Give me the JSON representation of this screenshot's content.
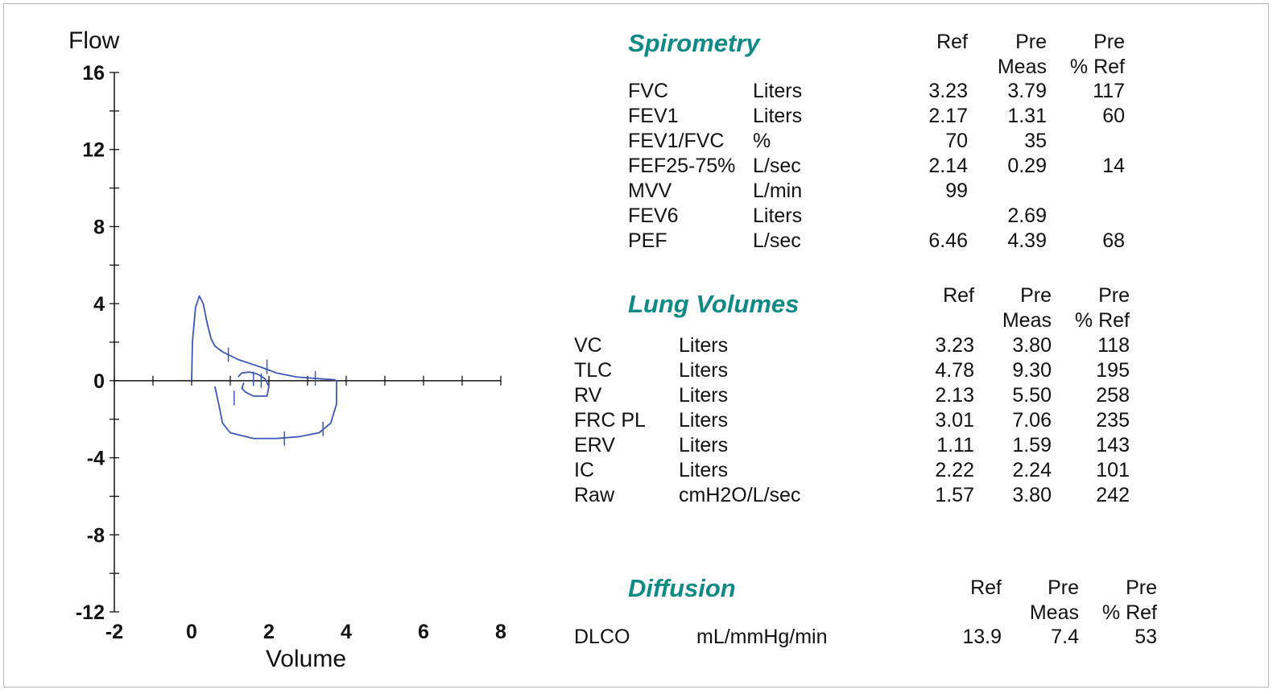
{
  "colors": {
    "accent": "#0e8a86",
    "curve": "#3d57b8",
    "axis": "#111111",
    "frame": "#b9b9b9"
  },
  "chart_data": {
    "type": "line",
    "title": "",
    "xlabel": "Volume",
    "ylabel": "Flow",
    "xlim": [
      -2,
      8
    ],
    "ylim": [
      -12,
      16
    ],
    "xticks_labeled": [
      -2,
      0,
      2,
      4,
      6,
      8
    ],
    "yticks_labeled": [
      16,
      12,
      8,
      4,
      0,
      -4,
      -8,
      -12
    ],
    "xtick_labels": [
      "-2",
      "0",
      "2",
      "4",
      "6",
      "8"
    ],
    "ytick_labels": [
      "16",
      "12",
      "8",
      "4",
      "0",
      "-4",
      "-8",
      "-12"
    ],
    "minor_step": 1,
    "grid": false,
    "series": [
      {
        "values": [
          [
            0.0,
            0.0
          ],
          [
            0.02,
            2.0
          ],
          [
            0.1,
            3.8
          ],
          [
            0.2,
            4.4
          ],
          [
            0.3,
            4.0
          ],
          [
            0.4,
            3.0
          ],
          [
            0.5,
            2.2
          ],
          [
            0.6,
            1.8
          ],
          [
            0.8,
            1.5
          ],
          [
            1.0,
            1.3
          ],
          [
            1.2,
            1.1
          ],
          [
            1.5,
            0.9
          ],
          [
            1.8,
            0.7
          ],
          [
            2.2,
            0.4
          ],
          [
            2.7,
            0.2
          ],
          [
            3.2,
            0.12
          ],
          [
            3.7,
            0.05
          ],
          [
            3.75,
            0.0
          ],
          [
            3.75,
            -1.2
          ],
          [
            3.6,
            -2.2
          ],
          [
            3.3,
            -2.7
          ],
          [
            2.8,
            -2.9
          ],
          [
            2.2,
            -3.0
          ],
          [
            1.6,
            -3.0
          ],
          [
            1.0,
            -2.7
          ],
          [
            0.8,
            -2.2
          ],
          [
            0.7,
            -1.2
          ],
          [
            0.6,
            -0.3
          ]
        ]
      },
      {
        "values": [
          [
            1.2,
            0.2
          ],
          [
            1.3,
            0.4
          ],
          [
            1.5,
            0.45
          ],
          [
            1.7,
            0.35
          ],
          [
            1.9,
            0.1
          ],
          [
            2.0,
            -0.3
          ],
          [
            1.95,
            -0.8
          ],
          [
            1.6,
            -0.8
          ],
          [
            1.4,
            -0.6
          ],
          [
            1.3,
            -0.4
          ],
          [
            1.35,
            -0.1
          ]
        ]
      }
    ]
  },
  "spirometry": {
    "title": "Spirometry",
    "headers": {
      "ref": "Ref",
      "pre1": "Pre",
      "pre1b": "Meas",
      "pre2": "Pre",
      "pre2b": "% Ref"
    },
    "rows": [
      {
        "name": "FVC",
        "unit": "Liters",
        "ref": "3.23",
        "meas": "3.79",
        "pct": "117"
      },
      {
        "name": "FEV1",
        "unit": "Liters",
        "ref": "2.17",
        "meas": "1.31",
        "pct": "60"
      },
      {
        "name": "FEV1/FVC",
        "unit": "%",
        "ref": "70",
        "meas": "35",
        "pct": ""
      },
      {
        "name": "FEF25-75%",
        "unit": "L/sec",
        "ref": "2.14",
        "meas": "0.29",
        "pct": "14"
      },
      {
        "name": "MVV",
        "unit": "L/min",
        "ref": "99",
        "meas": "",
        "pct": ""
      },
      {
        "name": "FEV6",
        "unit": "Liters",
        "ref": "",
        "meas": "2.69",
        "pct": ""
      },
      {
        "name": "PEF",
        "unit": "L/sec",
        "ref": "6.46",
        "meas": "4.39",
        "pct": "68"
      }
    ]
  },
  "lung_volumes": {
    "title": "Lung Volumes",
    "headers": {
      "ref": "Ref",
      "pre1": "Pre",
      "pre1b": "Meas",
      "pre2": "Pre",
      "pre2b": "% Ref"
    },
    "rows": [
      {
        "name": "VC",
        "unit": "Liters",
        "ref": "3.23",
        "meas": "3.80",
        "pct": "118"
      },
      {
        "name": "TLC",
        "unit": "Liters",
        "ref": "4.78",
        "meas": "9.30",
        "pct": "195"
      },
      {
        "name": "RV",
        "unit": "Liters",
        "ref": "2.13",
        "meas": "5.50",
        "pct": "258"
      },
      {
        "name": "FRC PL",
        "unit": "Liters",
        "ref": "3.01",
        "meas": "7.06",
        "pct": "235"
      },
      {
        "name": "ERV",
        "unit": "Liters",
        "ref": "1.11",
        "meas": "1.59",
        "pct": "143"
      },
      {
        "name": "IC",
        "unit": "Liters",
        "ref": "2.22",
        "meas": "2.24",
        "pct": "101"
      },
      {
        "name": "Raw",
        "unit": "cmH2O/L/sec",
        "ref": "1.57",
        "meas": "3.80",
        "pct": "242"
      }
    ]
  },
  "diffusion": {
    "title": "Diffusion",
    "headers": {
      "ref": "Ref",
      "pre1": "Pre",
      "pre1b": "Meas",
      "pre2": "Pre",
      "pre2b": "% Ref"
    },
    "rows": [
      {
        "name": "DLCO",
        "unit": "mL/mmHg/min",
        "ref": "13.9",
        "meas": "7.4",
        "pct": "53"
      }
    ]
  }
}
